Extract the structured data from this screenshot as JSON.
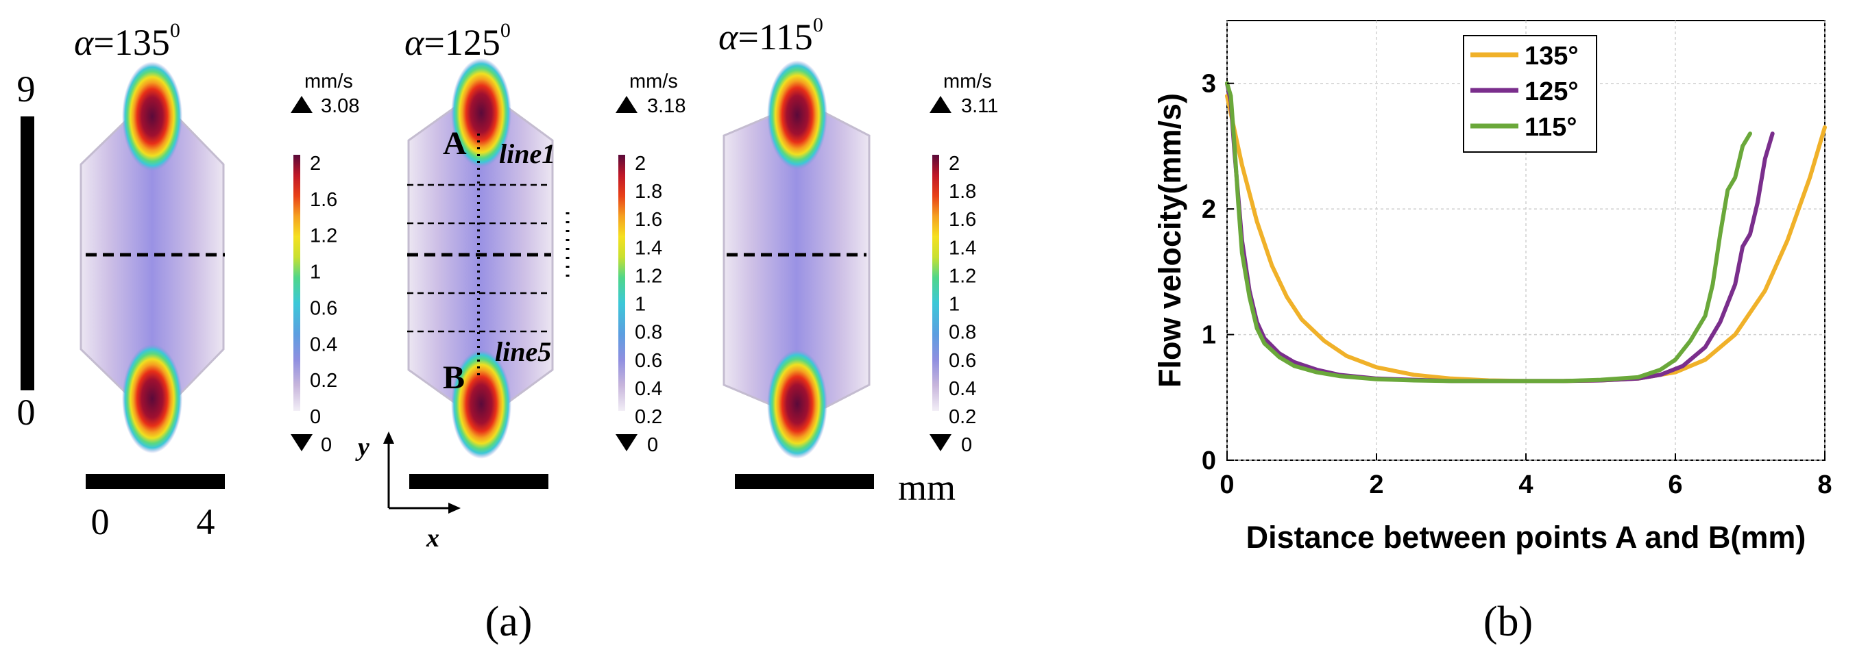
{
  "panel_a": {
    "caption": "(a)",
    "vertical_scale": {
      "top": "9",
      "bottom": "0"
    },
    "horizontal_scale": {
      "left": "0",
      "right": "4"
    },
    "unit": "mm",
    "axes": {
      "x": "x",
      "y": "y"
    },
    "points": {
      "a": "A",
      "b": "B"
    },
    "lines": {
      "first": "line1",
      "last": "line5"
    },
    "colormap": [
      "#f2eef6",
      "#c7b5dc",
      "#8f8fe0",
      "#5c9ee0",
      "#3cc8d8",
      "#4fd68a",
      "#c8e030",
      "#f5e020",
      "#f5a020",
      "#e84018",
      "#c01828",
      "#5a0a3a"
    ],
    "chambers": [
      {
        "alpha_symbol": "α",
        "alpha_eq": "=135",
        "alpha_exp": "0",
        "colorbar": {
          "unit": "mm/s",
          "max_label": "3.08",
          "min_label": "0",
          "ticks": [
            "2",
            "1.6",
            "1.2",
            "1",
            "0.6",
            "0.4",
            "0.2",
            "0"
          ]
        }
      },
      {
        "alpha_symbol": "α",
        "alpha_eq": "=125",
        "alpha_exp": "0",
        "colorbar": {
          "unit": "mm/s",
          "max_label": "3.18",
          "min_label": "0",
          "ticks": [
            "2",
            "1.8",
            "1.6",
            "1.4",
            "1.2",
            "1",
            "0.8",
            "0.6",
            "0.4",
            "0.2"
          ]
        }
      },
      {
        "alpha_symbol": "α",
        "alpha_eq": "=115",
        "alpha_exp": "0",
        "colorbar": {
          "unit": "mm/s",
          "max_label": "3.11",
          "min_label": "0",
          "ticks": [
            "2",
            "1.8",
            "1.6",
            "1.4",
            "1.2",
            "1",
            "0.8",
            "0.6",
            "0.4",
            "0.2"
          ]
        }
      }
    ]
  },
  "panel_b": {
    "caption": "(b)"
  },
  "chart_data": {
    "type": "line",
    "title": "",
    "xlabel": "Distance between points A and B(mm)",
    "ylabel": "Flow velocity(mm/s)",
    "xlim": [
      0,
      8
    ],
    "ylim": [
      0,
      3.5
    ],
    "xticks": [
      0,
      2,
      4,
      6,
      8
    ],
    "yticks": [
      0,
      1,
      2,
      3
    ],
    "grid": true,
    "legend_position": "top-center",
    "series": [
      {
        "name": "135°",
        "color": "#f0b129",
        "x": [
          0,
          0.2,
          0.4,
          0.6,
          0.8,
          1.0,
          1.3,
          1.6,
          2.0,
          2.5,
          3.0,
          3.5,
          4.0,
          4.5,
          5.0,
          5.5,
          6.0,
          6.4,
          6.8,
          7.2,
          7.5,
          7.8,
          8.0
        ],
        "y": [
          2.9,
          2.35,
          1.9,
          1.55,
          1.3,
          1.12,
          0.95,
          0.83,
          0.74,
          0.68,
          0.65,
          0.635,
          0.63,
          0.63,
          0.635,
          0.65,
          0.7,
          0.8,
          1.0,
          1.35,
          1.75,
          2.25,
          2.65
        ]
      },
      {
        "name": "125°",
        "color": "#7a2e8c",
        "x": [
          0,
          0.05,
          0.1,
          0.15,
          0.2,
          0.3,
          0.4,
          0.5,
          0.7,
          0.9,
          1.2,
          1.5,
          2.0,
          2.5,
          3.0,
          3.5,
          4.0,
          4.5,
          5.0,
          5.5,
          5.8,
          6.1,
          6.4,
          6.6,
          6.8,
          6.9,
          7.0,
          7.1,
          7.2,
          7.3
        ],
        "y": [
          3.0,
          2.85,
          2.45,
          2.1,
          1.75,
          1.35,
          1.1,
          0.97,
          0.85,
          0.78,
          0.72,
          0.68,
          0.65,
          0.64,
          0.63,
          0.63,
          0.63,
          0.63,
          0.635,
          0.65,
          0.68,
          0.75,
          0.9,
          1.1,
          1.4,
          1.7,
          1.8,
          2.05,
          2.4,
          2.6
        ]
      },
      {
        "name": "115°",
        "color": "#6aa83a",
        "x": [
          0,
          0.05,
          0.1,
          0.15,
          0.2,
          0.3,
          0.4,
          0.5,
          0.7,
          0.9,
          1.2,
          1.5,
          2.0,
          2.5,
          3.0,
          3.5,
          4.0,
          4.5,
          5.0,
          5.5,
          5.8,
          6.0,
          6.2,
          6.4,
          6.5,
          6.6,
          6.7,
          6.8,
          6.9,
          7.0
        ],
        "y": [
          3.0,
          2.9,
          2.5,
          2.05,
          1.65,
          1.3,
          1.05,
          0.93,
          0.82,
          0.75,
          0.7,
          0.67,
          0.645,
          0.635,
          0.63,
          0.63,
          0.63,
          0.63,
          0.64,
          0.66,
          0.72,
          0.8,
          0.95,
          1.15,
          1.4,
          1.8,
          2.15,
          2.25,
          2.5,
          2.6
        ]
      }
    ]
  }
}
